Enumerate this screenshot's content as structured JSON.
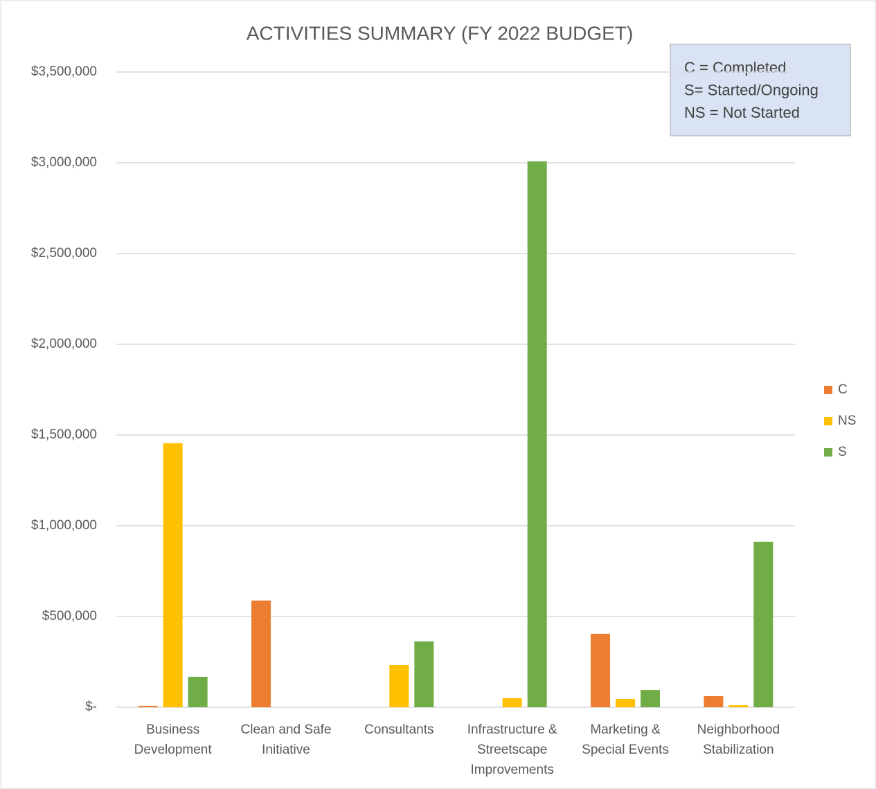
{
  "chart_data": {
    "type": "bar",
    "title": "ACTIVITIES SUMMARY (FY 2022 BUDGET)",
    "annotation": [
      "C = Completed",
      "S= Started/Ongoing",
      "NS = Not Started"
    ],
    "categories": [
      "Business Development",
      "Clean and Safe Initiative",
      "Consultants",
      "Infrastructure & Streetscape Improvements",
      "Marketing & Special Events",
      "Neighborhood Stabilization"
    ],
    "series": [
      {
        "name": "C",
        "color": "#ed7d31",
        "values": [
          8000,
          588000,
          0,
          0,
          405000,
          61000
        ]
      },
      {
        "name": "NS",
        "color": "#ffc000",
        "values": [
          1455000,
          0,
          233000,
          50000,
          46000,
          11000
        ]
      },
      {
        "name": "S",
        "color": "#70ad47",
        "values": [
          168000,
          0,
          363000,
          3008000,
          95000,
          912000
        ]
      }
    ],
    "ylim": [
      0,
      3500000
    ],
    "yticks": [
      {
        "value": 0,
        "label": "$-"
      },
      {
        "value": 500000,
        "label": "$500,000"
      },
      {
        "value": 1000000,
        "label": "$1,000,000"
      },
      {
        "value": 1500000,
        "label": "$1,500,000"
      },
      {
        "value": 2000000,
        "label": "$2,000,000"
      },
      {
        "value": 2500000,
        "label": "$2,500,000"
      },
      {
        "value": 3000000,
        "label": "$3,000,000"
      },
      {
        "value": 3500000,
        "label": "$3,500,000"
      }
    ],
    "grid": true,
    "legend": "right"
  }
}
